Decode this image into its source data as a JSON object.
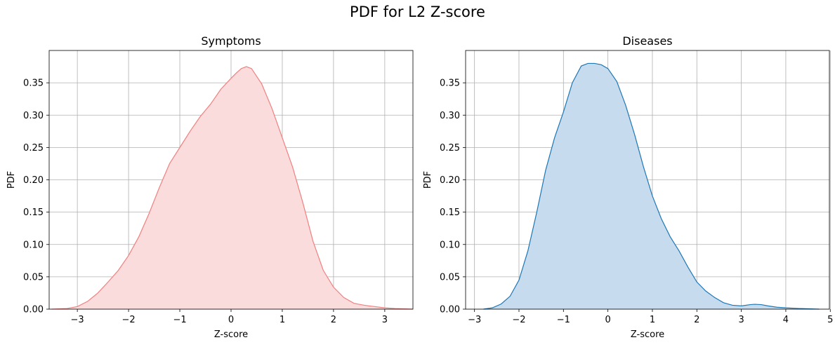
{
  "figure": {
    "title": "PDF for L2 Z-score"
  },
  "chart_data": [
    {
      "type": "area",
      "title": "Symptoms",
      "xlabel": "Z-score",
      "ylabel": "PDF",
      "xlim": [
        -3.55,
        3.55
      ],
      "ylim": [
        0,
        0.4
      ],
      "xticks": [
        -3,
        -2,
        -1,
        0,
        1,
        2,
        3
      ],
      "yticks": [
        0.0,
        0.05,
        0.1,
        0.15,
        0.2,
        0.25,
        0.3,
        0.35
      ],
      "grid": true,
      "line_color": "#f08080",
      "fill_color": "#fadcdc",
      "x": [
        -3.5,
        -3.2,
        -3.0,
        -2.8,
        -2.6,
        -2.4,
        -2.2,
        -2.0,
        -1.8,
        -1.6,
        -1.4,
        -1.2,
        -1.0,
        -0.8,
        -0.6,
        -0.4,
        -0.2,
        0.0,
        0.1,
        0.2,
        0.3,
        0.4,
        0.6,
        0.8,
        1.0,
        1.2,
        1.4,
        1.6,
        1.8,
        2.0,
        2.2,
        2.4,
        2.6,
        2.8,
        3.0,
        3.2,
        3.55
      ],
      "y": [
        0.0,
        0.001,
        0.004,
        0.012,
        0.025,
        0.042,
        0.06,
        0.083,
        0.112,
        0.148,
        0.188,
        0.225,
        0.25,
        0.275,
        0.298,
        0.317,
        0.34,
        0.357,
        0.365,
        0.372,
        0.375,
        0.372,
        0.348,
        0.31,
        0.265,
        0.22,
        0.165,
        0.105,
        0.06,
        0.034,
        0.018,
        0.009,
        0.006,
        0.004,
        0.002,
        0.001,
        0.0
      ]
    },
    {
      "type": "area",
      "title": "Diseases",
      "xlabel": "Z-score",
      "ylabel": "PDF",
      "xlim": [
        -3.2,
        4.98
      ],
      "ylim": [
        0,
        0.4
      ],
      "xticks": [
        -3,
        -2,
        -1,
        0,
        1,
        2,
        3,
        4,
        5
      ],
      "yticks": [
        0.0,
        0.05,
        0.1,
        0.15,
        0.2,
        0.25,
        0.3,
        0.35
      ],
      "grid": true,
      "line_color": "#1f77b4",
      "fill_color": "#c6dbed",
      "x": [
        -2.8,
        -2.6,
        -2.4,
        -2.2,
        -2.0,
        -1.8,
        -1.6,
        -1.4,
        -1.2,
        -1.0,
        -0.8,
        -0.6,
        -0.45,
        -0.3,
        -0.15,
        0.0,
        0.2,
        0.4,
        0.6,
        0.8,
        1.0,
        1.2,
        1.4,
        1.6,
        1.8,
        2.0,
        2.2,
        2.4,
        2.6,
        2.8,
        3.0,
        3.2,
        3.3,
        3.45,
        3.6,
        3.8,
        4.0,
        4.3,
        4.75
      ],
      "y": [
        0.0,
        0.002,
        0.008,
        0.02,
        0.045,
        0.09,
        0.15,
        0.215,
        0.265,
        0.305,
        0.35,
        0.376,
        0.38,
        0.38,
        0.378,
        0.372,
        0.352,
        0.315,
        0.27,
        0.22,
        0.175,
        0.14,
        0.112,
        0.09,
        0.065,
        0.042,
        0.028,
        0.018,
        0.01,
        0.006,
        0.005,
        0.007,
        0.0075,
        0.007,
        0.005,
        0.003,
        0.002,
        0.001,
        0.0
      ]
    }
  ]
}
